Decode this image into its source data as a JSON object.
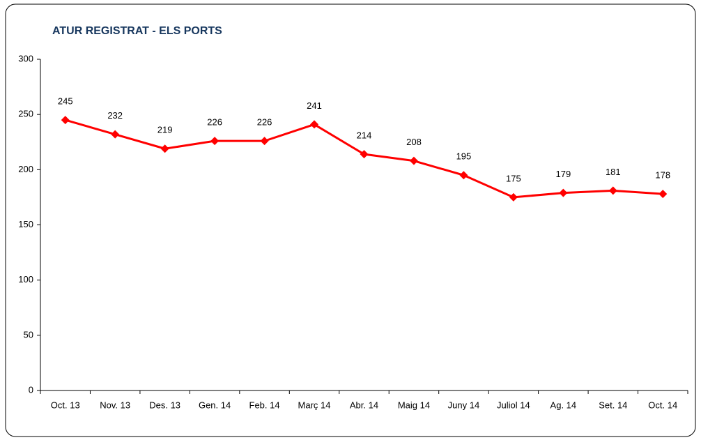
{
  "chart_data": {
    "type": "line",
    "title": "ATUR REGISTRAT - ELS PORTS",
    "categories": [
      "Oct. 13",
      "Nov. 13",
      "Des. 13",
      "Gen. 14",
      "Feb. 14",
      "Març 14",
      "Abr. 14",
      "Maig 14",
      "Juny 14",
      "Juliol 14",
      "Ag. 14",
      "Set. 14",
      "Oct. 14"
    ],
    "values": [
      245,
      232,
      219,
      226,
      226,
      241,
      214,
      208,
      195,
      175,
      179,
      181,
      178
    ],
    "color": "#ff0000",
    "ylim": [
      0,
      300
    ],
    "yticks": [
      0,
      50,
      100,
      150,
      200,
      250,
      300
    ],
    "grid": false
  }
}
